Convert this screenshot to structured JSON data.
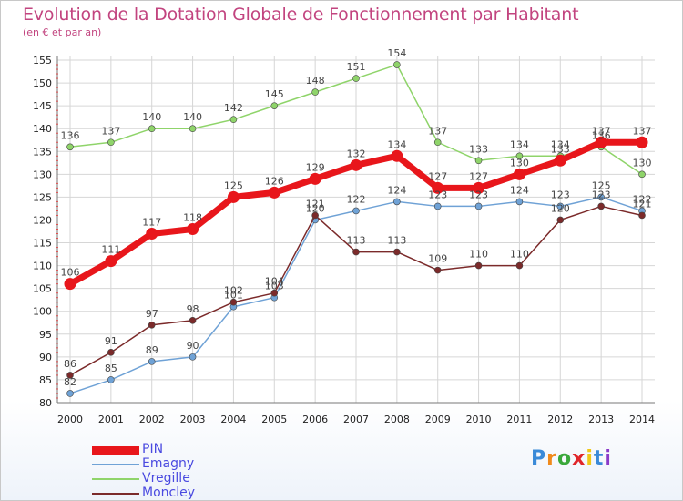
{
  "chart_data": {
    "type": "line",
    "title": "Evolution de la Dotation Globale de Fonctionnement par Habitant",
    "subtitle": "(en € et par an)",
    "x": [
      "2000",
      "2001",
      "2002",
      "2003",
      "2004",
      "2005",
      "2006",
      "2007",
      "2008",
      "2009",
      "2010",
      "2011",
      "2012",
      "2013",
      "2014"
    ],
    "y_ticks": [
      "80",
      "85",
      "90",
      "95",
      "100",
      "105",
      "110",
      "115",
      "120",
      "125",
      "130",
      "135",
      "140",
      "145",
      "150",
      "155"
    ],
    "ylim": [
      80,
      156
    ],
    "grid": true,
    "series": [
      {
        "name": "PIN",
        "color": "#e8161b",
        "values": [
          106,
          111,
          117,
          118,
          125,
          126,
          129,
          132,
          134,
          127,
          127,
          130,
          133,
          137,
          137
        ],
        "labels": [
          "106",
          "111",
          "117",
          "118",
          "125",
          "126",
          "129",
          "132",
          "134",
          "127",
          "127",
          "130",
          "133",
          "137",
          "137"
        ]
      },
      {
        "name": "Emagny",
        "color": "#6fa2d6",
        "values": [
          82,
          85,
          89,
          90,
          101,
          103,
          120,
          122,
          124,
          123,
          123,
          124,
          123,
          125,
          122
        ],
        "labels": [
          "82",
          "85",
          "89",
          "90",
          "101",
          "103",
          "120",
          "122",
          "124",
          "123",
          "123",
          "124",
          "123",
          "125",
          "122"
        ]
      },
      {
        "name": "Vregille",
        "color": "#8fd46a",
        "values": [
          136,
          137,
          140,
          140,
          142,
          145,
          148,
          151,
          154,
          137,
          133,
          134,
          134,
          136,
          130
        ],
        "labels": [
          "136",
          "137",
          "140",
          "140",
          "142",
          "145",
          "148",
          "151",
          "154",
          "137",
          "133",
          "134",
          "134",
          "136",
          "130"
        ]
      },
      {
        "name": "Moncley",
        "color": "#7b2a2a",
        "values": [
          86,
          91,
          97,
          98,
          102,
          104,
          121,
          113,
          113,
          109,
          110,
          110,
          120,
          123,
          121
        ],
        "labels": [
          "86",
          "91",
          "97",
          "98",
          "102",
          "104",
          "121",
          "113",
          "113",
          "109",
          "110",
          "110",
          "120",
          "123",
          "121"
        ]
      }
    ]
  },
  "legend": {
    "items": [
      "PIN",
      "Emagny",
      "Vregille",
      "Moncley"
    ]
  },
  "logo": {
    "letters": [
      "P",
      "r",
      "o",
      "x",
      "i",
      "t",
      "i"
    ],
    "colors": [
      "#3a8ad8",
      "#f08a1c",
      "#3aa83a",
      "#e0262a",
      "#f0c818",
      "#3a8ad8",
      "#8a3ac8"
    ]
  }
}
